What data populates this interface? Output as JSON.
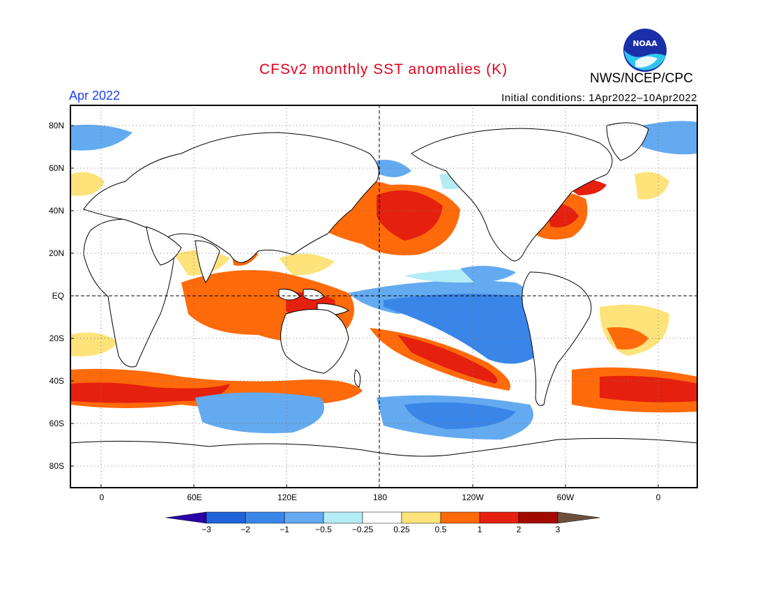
{
  "header": {
    "title": "CFSv2 monthly SST anomalies (K)",
    "agency": "NWS/NCEP/CPC",
    "month": "Apr 2022",
    "initial_conditions": "Initial conditions: 1Apr2022–10Apr2022",
    "logo_text": "NOAA"
  },
  "map": {
    "lat_labels": [
      "80N",
      "60N",
      "40N",
      "20N",
      "EQ",
      "20S",
      "40S",
      "60S",
      "80S"
    ],
    "lon_labels": [
      "0",
      "60E",
      "120E",
      "180",
      "120W",
      "60W",
      "0"
    ]
  },
  "colorbar": {
    "labels": [
      "−3",
      "−2",
      "−1",
      "−0.5",
      "−0.25",
      "0.25",
      "0.5",
      "1",
      "2",
      "3"
    ],
    "colors": [
      "#2b00a8",
      "#1f63d6",
      "#3a86e8",
      "#63aaf0",
      "#b4ecf6",
      "#ffffff",
      "#fde37a",
      "#ff6a0a",
      "#e5200f",
      "#a20a00",
      "#6e4e3e"
    ]
  }
}
